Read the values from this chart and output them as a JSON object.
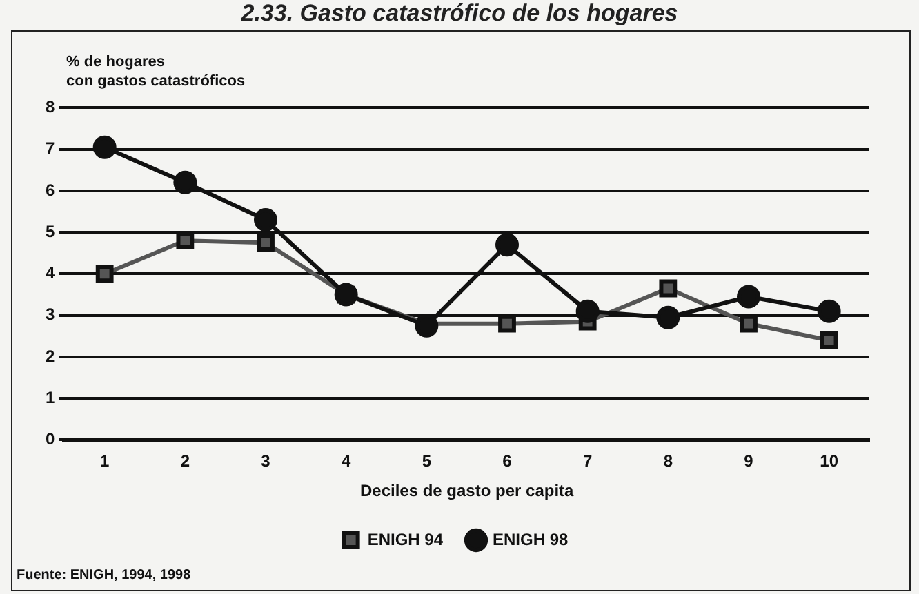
{
  "chart_data": {
    "type": "line",
    "title": "2.33.   Gasto catastrófico de los hogares",
    "ylabel": "% de hogares\ncon gastos catastróficos",
    "xlabel": "Deciles de gasto per capita",
    "annotations": [
      "Fuente: ENIGH, 1994, 1998"
    ],
    "categories": [
      "1",
      "2",
      "3",
      "4",
      "5",
      "6",
      "7",
      "8",
      "9",
      "10"
    ],
    "ylim": [
      0,
      8
    ],
    "yticks": [
      0,
      1,
      2,
      3,
      4,
      5,
      6,
      7,
      8
    ],
    "grid": "y",
    "legend": "bottom",
    "line_style": "solid",
    "series": [
      {
        "name": "ENIGH 94",
        "color": "#555555",
        "marker": "square",
        "values": [
          4.0,
          4.8,
          4.75,
          3.5,
          2.8,
          2.8,
          2.85,
          3.65,
          2.8,
          2.4
        ]
      },
      {
        "name": "ENIGH 98",
        "color": "#111111",
        "marker": "circle",
        "values": [
          7.05,
          6.2,
          5.3,
          3.5,
          2.75,
          4.7,
          3.1,
          2.95,
          3.45,
          3.1
        ]
      }
    ]
  }
}
